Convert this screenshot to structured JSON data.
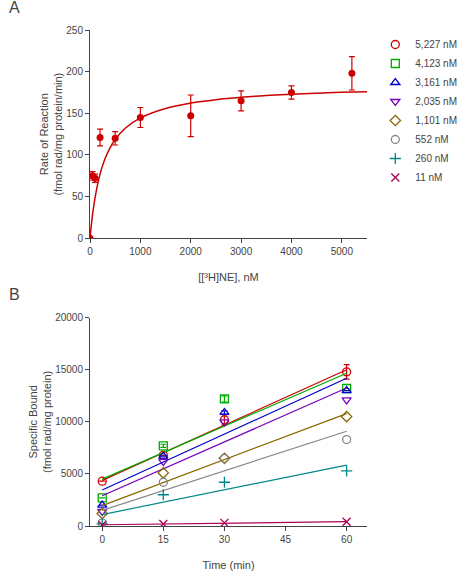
{
  "chart_data": [
    {
      "type": "scatter",
      "title": "A",
      "x_label": "[[³H]NE], nM",
      "y_label": "Rate of Reaction\n(fmol rad/mg protein/min)",
      "color": "#cc0000",
      "marker": "circle",
      "x": [
        0,
        50,
        100,
        200,
        500,
        1000,
        2000,
        3000,
        4000,
        5200
      ],
      "values": [
        0,
        75,
        72,
        121,
        120,
        145,
        147,
        165,
        175,
        198
      ],
      "yerr": [
        0,
        5,
        5,
        10,
        8,
        12,
        25,
        12,
        8,
        20
      ],
      "fit": {
        "x": [
          0,
          25,
          50,
          75,
          100,
          150,
          200,
          250,
          300,
          400,
          500,
          700,
          1000,
          1500,
          2000,
          2500,
          3000,
          3500,
          4000,
          4500,
          5000,
          5500
        ],
        "values": [
          0,
          15.16,
          28.03,
          39.08,
          48.68,
          64.53,
          77.08,
          87.26,
          95.69,
          108.82,
          118.59,
          132.14,
          144.53,
          155.9,
          162.28,
          166.37,
          169.21,
          171.3,
          172.9,
          174.16,
          175.19,
          176.04
        ]
      },
      "xlim": [
        0,
        5500
      ],
      "ylim": [
        0,
        250
      ],
      "xticks": [
        0,
        1000,
        2000,
        3000,
        4000,
        5000
      ],
      "yticks": [
        0,
        50,
        100,
        150,
        200,
        250
      ],
      "grid": false
    },
    {
      "type": "scatter",
      "title": "B",
      "x_label": "Time (min)",
      "y_label": "Specific Bound\n(fmol rad/mg protein)",
      "x": [
        0,
        15,
        30,
        60
      ],
      "series": [
        {
          "name": "5,227 nM",
          "color": "#cc0000",
          "marker": "circle-open",
          "values": [
            4300,
            6800,
            10200,
            14800
          ],
          "yerr": [
            0,
            0,
            500,
            700
          ],
          "fit": {
            "x": [
              0,
              60
            ],
            "values": [
              4380,
              14997.14
            ]
          }
        },
        {
          "name": "4,123 nM",
          "color": "#00aa00",
          "marker": "square-open",
          "values": [
            2700,
            7700,
            12200,
            13200
          ],
          "yerr": [
            0,
            150,
            300,
            0
          ],
          "fit": {
            "x": [
              0,
              60
            ],
            "values": [
              4500,
              14671.43
            ]
          }
        },
        {
          "name": "3,161 nM",
          "color": "#0000cc",
          "marker": "triangle-up-open",
          "values": [
            2000,
            6700,
            10900,
            13000
          ],
          "yerr": [
            0,
            0,
            150,
            0
          ],
          "fit": {
            "x": [
              0,
              60
            ],
            "values": [
              3460,
              14180
            ]
          }
        },
        {
          "name": "2,035 nM",
          "color": "#7700bb",
          "marker": "triangle-down-open",
          "values": [
            1400,
            6200,
            10000,
            12100
          ],
          "yerr": [
            0,
            0,
            0,
            0
          ],
          "fit": {
            "x": [
              0,
              60
            ],
            "values": [
              2900,
              13242.86
            ]
          }
        },
        {
          "name": "1,101 nM",
          "color": "#886600",
          "marker": "diamond-open",
          "values": [
            1200,
            5100,
            6500,
            10500
          ],
          "yerr": [
            0,
            0,
            0,
            0
          ],
          "fit": {
            "x": [
              0,
              60
            ],
            "values": [
              1960,
              10794.29
            ]
          }
        },
        {
          "name": "552 nM",
          "color": "#888888",
          "marker": "circle-open",
          "values": [
            300,
            4200,
            6500,
            8300
          ],
          "yerr": [
            0,
            0,
            0,
            0
          ],
          "fit": {
            "x": [
              0,
              60
            ],
            "values": [
              1500,
              9100
            ]
          }
        },
        {
          "name": "260 nM",
          "color": "#008888",
          "marker": "cross-thin-open",
          "values": [
            200,
            3000,
            4200,
            5300
          ],
          "yerr": [
            0,
            0,
            0,
            0
          ],
          "fit": {
            "x": [
              0,
              60
            ],
            "values": [
              1100,
              5842.86
            ]
          }
        },
        {
          "name": "11 nM",
          "color": "#aa0055",
          "marker": "x-thin-open",
          "values": [
            100,
            200,
            300,
            400
          ],
          "yerr": [
            0,
            0,
            0,
            0
          ],
          "fit": {
            "x": [
              0,
              60
            ],
            "values": [
              120,
              417.14
            ]
          }
        }
      ],
      "xlim": [
        -3,
        65
      ],
      "ylim": [
        0,
        20000
      ],
      "xticks": [
        0,
        15,
        30,
        45,
        60
      ],
      "yticks": [
        0,
        5000,
        10000,
        15000,
        20000
      ],
      "grid": false,
      "legend": "right"
    }
  ]
}
